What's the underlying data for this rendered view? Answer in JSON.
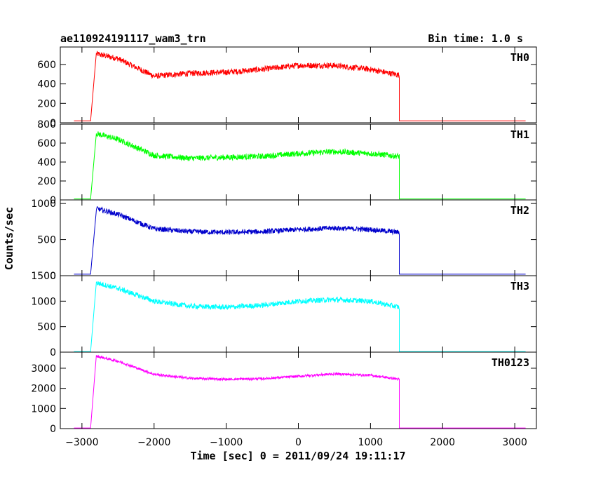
{
  "header": {
    "source_name": "ae110924191117_wam3_trn",
    "bin_time": "Bin time: 1.0 s"
  },
  "chart_data": {
    "type": "line",
    "xlabel": "Time [sec] 0 = 2011/09/24 19:11:17",
    "ylabel": "Counts/sec",
    "xlim": [
      -3300,
      3300
    ],
    "x_ticks": [
      "−3000",
      "−2000",
      "−1000",
      "0",
      "1000",
      "2000",
      "3000"
    ],
    "x_tick_values": [
      -3000,
      -2000,
      -1000,
      0,
      1000,
      2000,
      3000
    ],
    "grid": false,
    "panels": [
      {
        "name": "TH0",
        "color": "#ff0000",
        "ylim": [
          0,
          780
        ],
        "yticks": [
          0,
          200,
          400,
          600
        ],
        "profile": {
          "x": [
            -2880,
            -2800,
            -2500,
            -2000,
            -1500,
            -1000,
            -500,
            0,
            500,
            1000,
            1400
          ],
          "y": [
            20,
            710,
            660,
            480,
            510,
            520,
            550,
            590,
            590,
            550,
            490
          ]
        },
        "noise": 30,
        "baseline": 20
      },
      {
        "name": "TH1",
        "color": "#00ff00",
        "ylim": [
          0,
          800
        ],
        "yticks": [
          0,
          200,
          400,
          600,
          800
        ],
        "profile": {
          "x": [
            -2880,
            -2800,
            -2500,
            -2000,
            -1500,
            -1000,
            -500,
            0,
            500,
            1000,
            1400
          ],
          "y": [
            10,
            700,
            640,
            470,
            440,
            450,
            460,
            490,
            510,
            490,
            460
          ]
        },
        "noise": 30,
        "baseline": 10
      },
      {
        "name": "TH2",
        "color": "#0000cc",
        "ylim": [
          0,
          1050
        ],
        "yticks": [
          0,
          500,
          1000
        ],
        "profile": {
          "x": [
            -2880,
            -2800,
            -2500,
            -2000,
            -1500,
            -1000,
            -500,
            0,
            500,
            1000,
            1400
          ],
          "y": [
            20,
            930,
            850,
            650,
            610,
            600,
            610,
            640,
            660,
            640,
            600
          ]
        },
        "noise": 35,
        "baseline": 20
      },
      {
        "name": "TH3",
        "color": "#00ffff",
        "ylim": [
          0,
          1500
        ],
        "yticks": [
          0,
          500,
          1000,
          1500
        ],
        "profile": {
          "x": [
            -2880,
            -2800,
            -2500,
            -2000,
            -1500,
            -1000,
            -500,
            0,
            500,
            1000,
            1400
          ],
          "y": [
            10,
            1360,
            1250,
            1000,
            900,
            880,
            920,
            1000,
            1030,
            1000,
            880
          ]
        },
        "noise": 50,
        "baseline": 10
      },
      {
        "name": "TH0123",
        "color": "#ff00ff",
        "ylim": [
          0,
          3800
        ],
        "yticks": [
          0,
          1000,
          2000,
          3000
        ],
        "profile": {
          "x": [
            -2880,
            -2800,
            -2500,
            -2000,
            -1500,
            -1000,
            -500,
            0,
            500,
            1000,
            1400
          ],
          "y": [
            30,
            3600,
            3350,
            2700,
            2500,
            2450,
            2480,
            2600,
            2720,
            2650,
            2450
          ]
        },
        "noise": 60,
        "baseline": 30
      }
    ]
  }
}
